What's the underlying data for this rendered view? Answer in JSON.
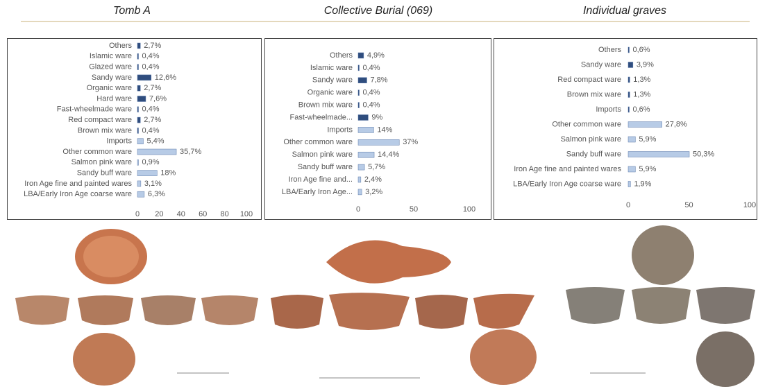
{
  "chart_data": [
    {
      "type": "bar",
      "orientation": "horizontal",
      "title": "Tomb A",
      "categories": [
        "Others",
        "Islamic ware",
        "Glazed ware",
        "Sandy ware",
        "Organic ware",
        "Hard ware",
        "Fast-wheelmade ware",
        "Red compact ware",
        "Brown mix ware",
        "Imports",
        "Other common ware",
        "Salmon pink ware",
        "Sandy buff ware",
        "Iron Age fine and painted wares",
        "LBA/Early Iron Age coarse ware"
      ],
      "values": [
        2.7,
        0.4,
        0.4,
        12.6,
        2.7,
        7.6,
        0.4,
        2.7,
        0.4,
        5.4,
        35.7,
        0.9,
        18,
        3.1,
        6.3
      ],
      "value_labels": [
        "2,7%",
        "0,4%",
        "0,4%",
        "12,6%",
        "2,7%",
        "7,6%",
        "0,4%",
        "2,7%",
        "0,4%",
        "5,4%",
        "35,7%",
        "0,9%",
        "18%",
        "3,1%",
        "6,3%"
      ],
      "colors": [
        "#2f4d7e",
        "#2f4d7e",
        "#2f4d7e",
        "#2f4d7e",
        "#2f4d7e",
        "#2f4d7e",
        "#2f4d7e",
        "#2f4d7e",
        "#2f4d7e",
        "#b7cbe6",
        "#b7cbe6",
        "#b7cbe6",
        "#b7cbe6",
        "#b7cbe6",
        "#b7cbe6"
      ],
      "xlim": [
        0,
        100
      ],
      "xticks": [
        0,
        20,
        40,
        60,
        80,
        100
      ]
    },
    {
      "type": "bar",
      "orientation": "horizontal",
      "title": "Collective Burial (069)",
      "categories": [
        "Others",
        "Islamic ware",
        "Sandy ware",
        "Organic ware",
        "Brown mix ware",
        "Fast-wheelmade...",
        "Imports",
        "Other common ware",
        "Salmon pink ware",
        "Sandy buff ware",
        "Iron Age fine and...",
        "LBA/Early Iron Age..."
      ],
      "values": [
        4.9,
        0.4,
        7.8,
        0.4,
        0.4,
        9,
        14,
        37,
        14.4,
        5.7,
        2.4,
        3.2
      ],
      "value_labels": [
        "4,9%",
        "0,4%",
        "7,8%",
        "0,4%",
        "0,4%",
        "9%",
        "14%",
        "37%",
        "14,4%",
        "5,7%",
        "2,4%",
        "3,2%"
      ],
      "colors": [
        "#2f4d7e",
        "#2f4d7e",
        "#2f4d7e",
        "#2f4d7e",
        "#2f4d7e",
        "#2f4d7e",
        "#b7cbe6",
        "#b7cbe6",
        "#b7cbe6",
        "#b7cbe6",
        "#b7cbe6",
        "#b7cbe6"
      ],
      "xlim": [
        0,
        100
      ],
      "xticks": [
        0,
        50,
        100
      ]
    },
    {
      "type": "bar",
      "orientation": "horizontal",
      "title": "Individual graves",
      "categories": [
        "Others",
        "Sandy ware",
        "Red compact ware",
        "Brown mix ware",
        "Imports",
        "Other common ware",
        "Salmon pink ware",
        "Sandy buff ware",
        "Iron Age fine and painted wares",
        "LBA/Early Iron Age coarse ware"
      ],
      "values": [
        0.6,
        3.9,
        1.3,
        1.3,
        0.6,
        27.8,
        5.9,
        50.3,
        5.9,
        1.9
      ],
      "value_labels": [
        "0,6%",
        "3,9%",
        "1,3%",
        "1,3%",
        "0,6%",
        "27,8%",
        "5,9%",
        "50,3%",
        "5,9%",
        "1,9%"
      ],
      "colors": [
        "#2f4d7e",
        "#2f4d7e",
        "#2f4d7e",
        "#2f4d7e",
        "#2f4d7e",
        "#b7cbe6",
        "#b7cbe6",
        "#b7cbe6",
        "#b7cbe6",
        "#b7cbe6"
      ],
      "xlim": [
        0,
        100
      ],
      "xticks": [
        0,
        50,
        100
      ]
    }
  ]
}
